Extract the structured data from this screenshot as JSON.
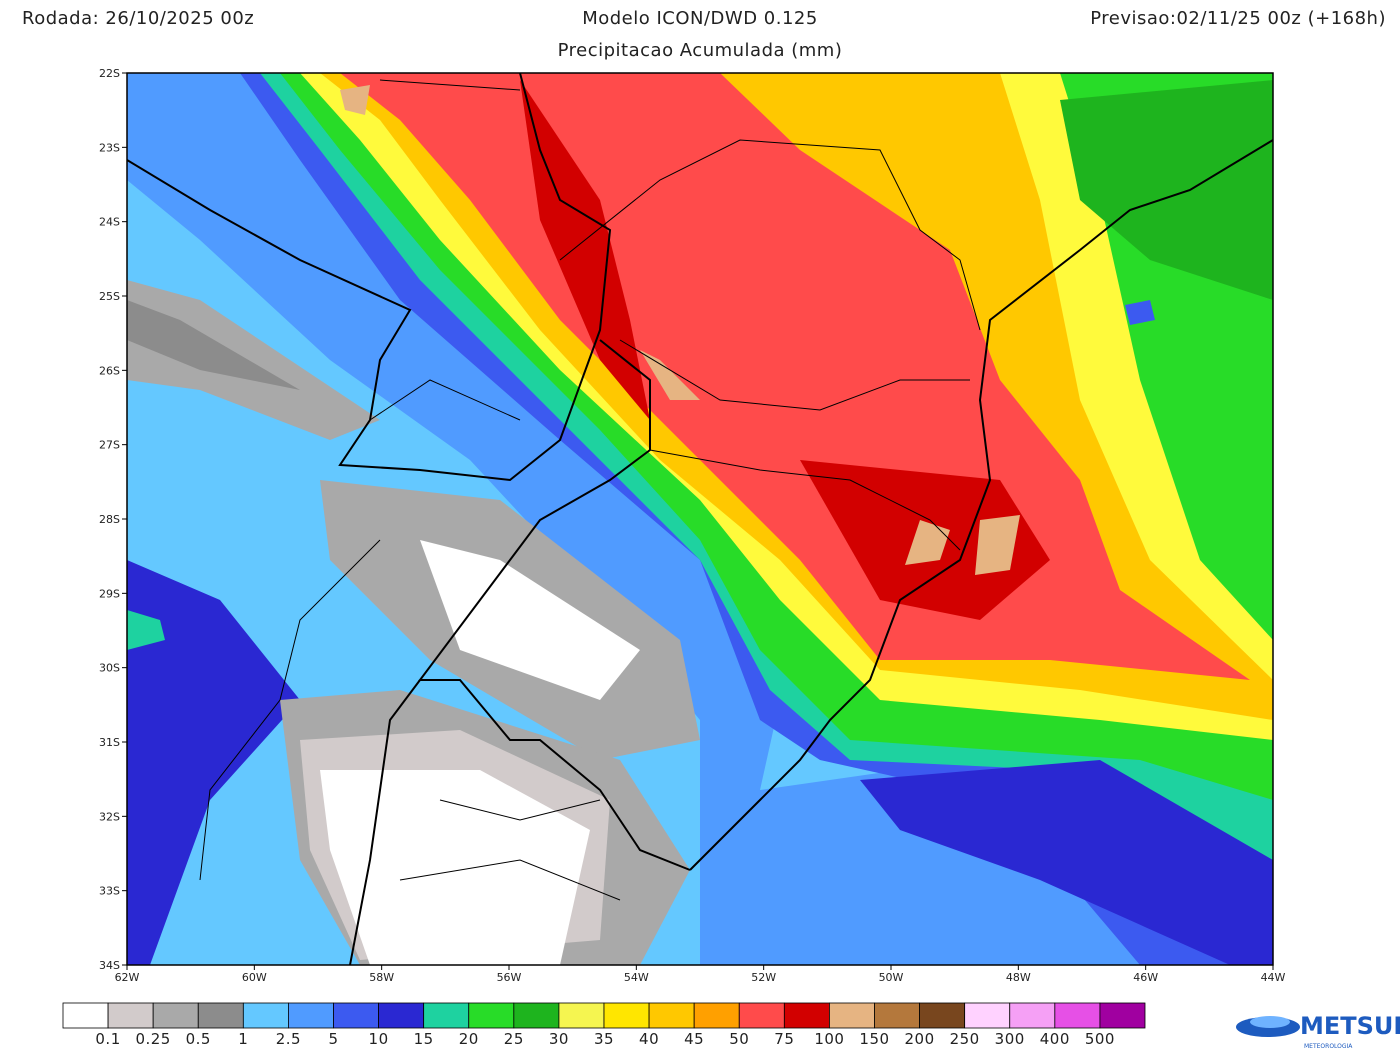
{
  "header": {
    "run": "Rodada: 26/10/2025 00z",
    "model": "Modelo ICON/DWD 0.125",
    "subtitle": "Precipitacao Acumulada (mm)",
    "forecast": "Previsao:02/11/25 00z (+168h)"
  },
  "map": {
    "lat_ticks": [
      "22S",
      "23S",
      "24S",
      "25S",
      "26S",
      "27S",
      "28S",
      "29S",
      "30S",
      "31S",
      "32S",
      "33S",
      "34S"
    ],
    "lon_ticks": [
      "62W",
      "60W",
      "58W",
      "56W",
      "54W",
      "52W",
      "50W",
      "48W",
      "46W",
      "44W"
    ]
  },
  "legend": {
    "colors": [
      "#ffffff",
      "#d2cbcb",
      "#a9a9a9",
      "#8c8c8c",
      "#64c8ff",
      "#509bff",
      "#3c5af0",
      "#2a28d2",
      "#1ed2a0",
      "#28dc28",
      "#1eb41e",
      "#f5f550",
      "#ffe600",
      "#ffc800",
      "#ffa000",
      "#ff4b4b",
      "#d20000",
      "#e6b482",
      "#b4783c",
      "#78461e",
      "#ffd2ff",
      "#f5a0f5",
      "#e650e6",
      "#a000a0"
    ],
    "labels": [
      "0.1",
      "0.25",
      "0.5",
      "1",
      "2.5",
      "5",
      "10",
      "15",
      "20",
      "25",
      "30",
      "35",
      "40",
      "45",
      "50",
      "75",
      "100",
      "150",
      "200",
      "250",
      "300",
      "400",
      "500"
    ]
  },
  "logo": {
    "name": "METSUL",
    "tagline": "METEOROLOGIA"
  }
}
